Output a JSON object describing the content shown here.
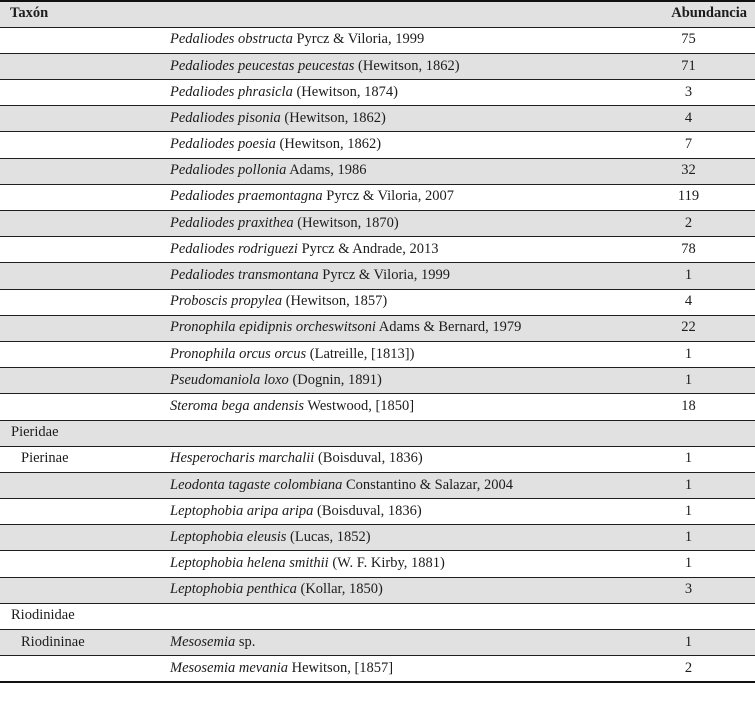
{
  "table": {
    "headers": {
      "taxon": "Taxón",
      "abundance": "Abundancia"
    },
    "colors": {
      "row_shade": "#e1e1e1",
      "row_plain": "#ffffff",
      "rule_line": "#1f1f1f",
      "text": "#1c1c1c"
    },
    "rows": [
      {
        "group": "",
        "group_level": "",
        "species_italic": "Pedaliodes obstructa",
        "species_roman": "Pyrcz & Viloria, 1999",
        "abundance": "75"
      },
      {
        "group": "",
        "group_level": "",
        "species_italic": "Pedaliodes peucestas peucestas",
        "species_roman": "(Hewitson, 1862)",
        "abundance": "71"
      },
      {
        "group": "",
        "group_level": "",
        "species_italic": "Pedaliodes phrasicla",
        "species_roman": "(Hewitson, 1874)",
        "abundance": "3"
      },
      {
        "group": "",
        "group_level": "",
        "species_italic": "Pedaliodes pisonia",
        "species_roman": "(Hewitson, 1862)",
        "abundance": "4"
      },
      {
        "group": "",
        "group_level": "",
        "species_italic": "Pedaliodes poesia",
        "species_roman": "(Hewitson, 1862)",
        "abundance": "7"
      },
      {
        "group": "",
        "group_level": "",
        "species_italic": "Pedaliodes pollonia",
        "species_roman": "Adams, 1986",
        "abundance": "32"
      },
      {
        "group": "",
        "group_level": "",
        "species_italic": "Pedaliodes praemontagna",
        "species_roman": "Pyrcz & Viloria, 2007",
        "abundance": "119"
      },
      {
        "group": "",
        "group_level": "",
        "species_italic": "Pedaliodes praxithea",
        "species_roman": "(Hewitson, 1870)",
        "abundance": "2"
      },
      {
        "group": "",
        "group_level": "",
        "species_italic": "Pedaliodes rodriguezi",
        "species_roman": "Pyrcz & Andrade, 2013",
        "abundance": "78"
      },
      {
        "group": "",
        "group_level": "",
        "species_italic": "Pedaliodes transmontana",
        "species_roman": "Pyrcz & Viloria, 1999",
        "abundance": "1"
      },
      {
        "group": "",
        "group_level": "",
        "species_italic": "Proboscis propylea",
        "species_roman": "(Hewitson, 1857)",
        "abundance": "4"
      },
      {
        "group": "",
        "group_level": "",
        "species_italic": "Pronophila epidipnis orcheswitsoni",
        "species_roman": "Adams & Bernard, 1979",
        "abundance": "22"
      },
      {
        "group": "",
        "group_level": "",
        "species_italic": "Pronophila orcus orcus",
        "species_roman": "(Latreille, [1813])",
        "abundance": "1"
      },
      {
        "group": "",
        "group_level": "",
        "species_italic": "Pseudomaniola loxo",
        "species_roman": "(Dognin, 1891)",
        "abundance": "1"
      },
      {
        "group": "",
        "group_level": "",
        "species_italic": "Steroma bega andensis",
        "species_roman": "Westwood, [1850]",
        "abundance": "18"
      },
      {
        "group": "Pieridae",
        "group_level": "family",
        "species_italic": "",
        "species_roman": "",
        "abundance": ""
      },
      {
        "group": "Pierinae",
        "group_level": "subfamily",
        "species_italic": "Hesperocharis marchalii",
        "species_roman": "(Boisduval, 1836)",
        "abundance": "1"
      },
      {
        "group": "",
        "group_level": "",
        "species_italic": "Leodonta tagaste colombiana",
        "species_roman": "Constantino & Salazar, 2004",
        "abundance": "1"
      },
      {
        "group": "",
        "group_level": "",
        "species_italic": "Leptophobia aripa aripa",
        "species_roman": "(Boisduval, 1836)",
        "abundance": "1"
      },
      {
        "group": "",
        "group_level": "",
        "species_italic": "Leptophobia eleusis",
        "species_roman": "(Lucas, 1852)",
        "abundance": "1"
      },
      {
        "group": "",
        "group_level": "",
        "species_italic": "Leptophobia helena smithii",
        "species_roman": "(W. F. Kirby, 1881)",
        "abundance": "1"
      },
      {
        "group": "",
        "group_level": "",
        "species_italic": "Leptophobia penthica",
        "species_roman": "(Kollar, 1850)",
        "abundance": "3"
      },
      {
        "group": "Riodinidae",
        "group_level": "family",
        "species_italic": "",
        "species_roman": "",
        "abundance": ""
      },
      {
        "group": "Riodininae",
        "group_level": "subfamily",
        "species_italic": "Mesosemia",
        "species_roman": "sp.",
        "abundance": "1"
      },
      {
        "group": "",
        "group_level": "",
        "species_italic": "Mesosemia mevania",
        "species_roman": "Hewitson, [1857]",
        "abundance": "2"
      }
    ]
  }
}
